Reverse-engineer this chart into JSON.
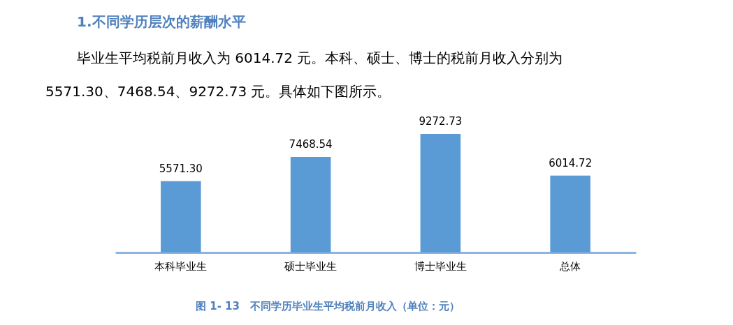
{
  "chart_data": {
    "type": "bar",
    "title": "1.不同学历层次的薪酬水平",
    "annotations": [
      "毕业生平均税前月收入为  6014.72  元。本科、硕士、博士的税前月收入分别为",
      "5571.30、7468.54、9272.73 元。具体如下图所示。",
      "图 1- 13　不同学历毕业生平均税前月收入（单位：元）"
    ],
    "categories": [
      "本科毕业生",
      "硕士毕业生",
      "博士毕业生",
      "总体"
    ],
    "values": [
      5571.3,
      7468.54,
      9272.73,
      6014.72
    ],
    "value_labels": [
      "5571.30",
      "7468.54",
      "9272.73",
      "6014.72"
    ],
    "color": "#5b9bd5"
  }
}
